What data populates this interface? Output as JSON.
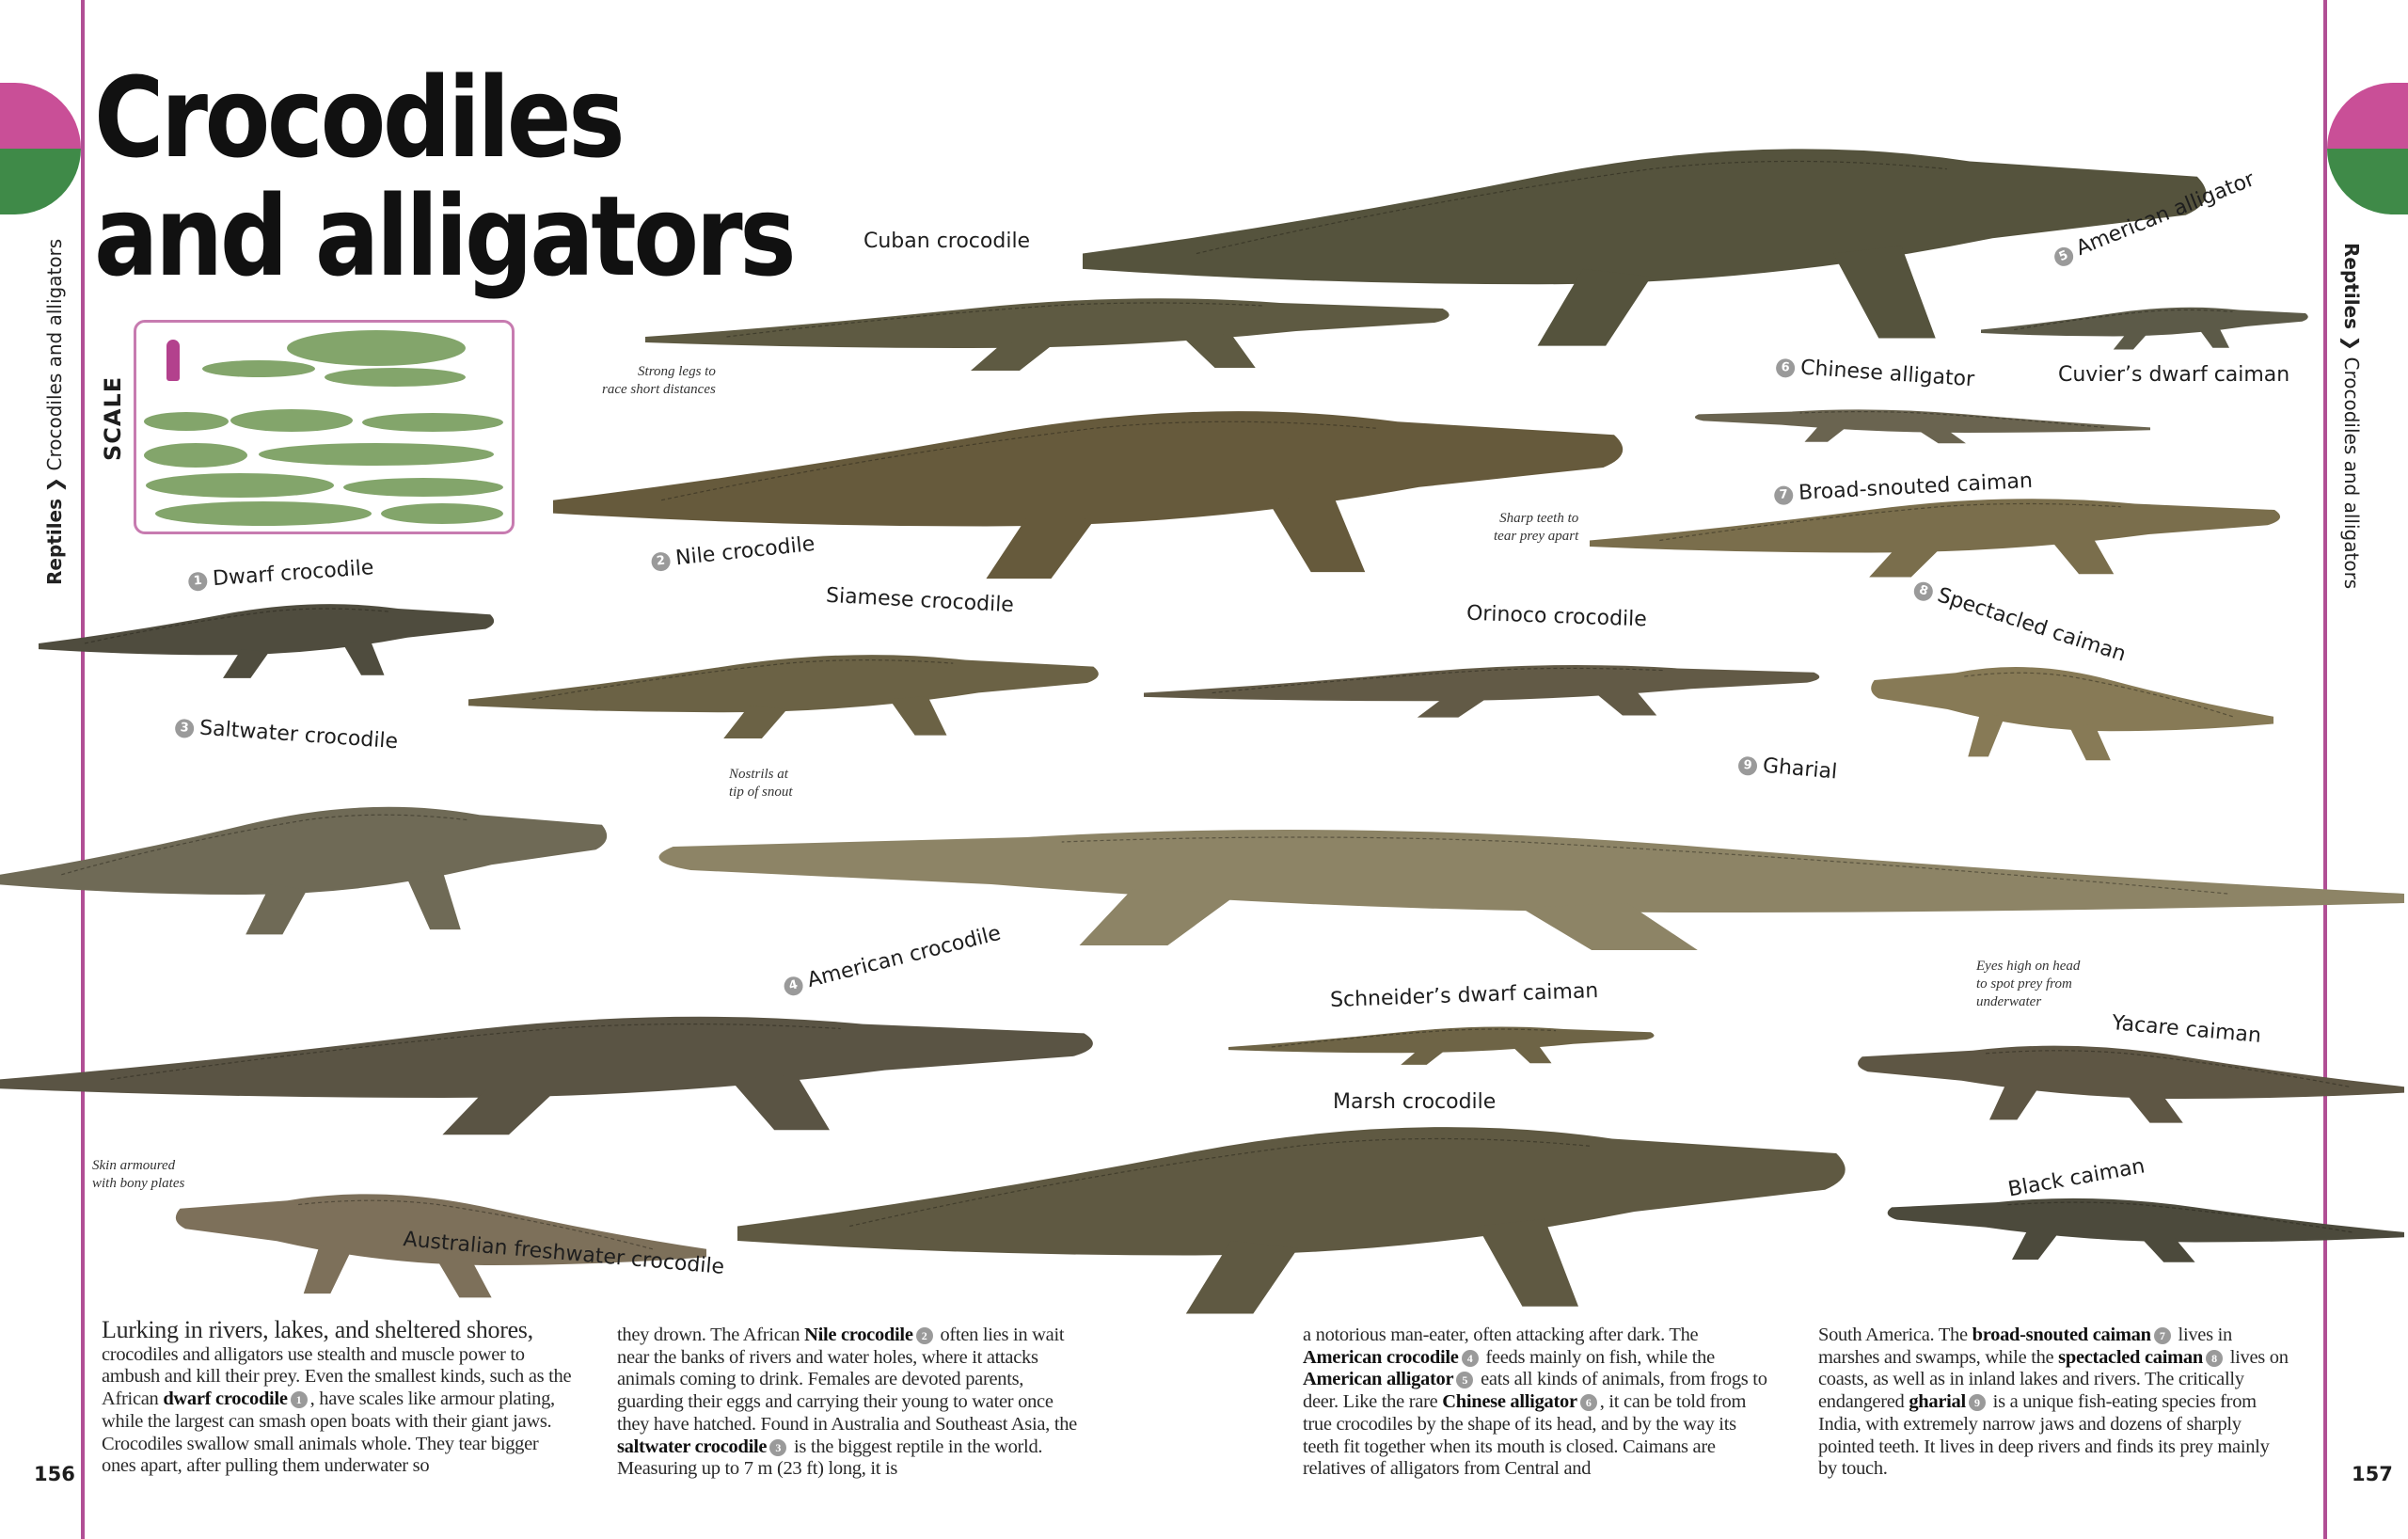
{
  "title": "Crocodiles and alligators",
  "breadcrumb": {
    "section": "Reptiles",
    "separator": "❯",
    "topic": "Crocodiles and alligators"
  },
  "colors": {
    "accent_magenta": "#c94f97",
    "accent_green": "#3f8a48",
    "badge_gray": "#9a9a9a"
  },
  "scale": {
    "label": "SCALE"
  },
  "species": [
    {
      "name": "Cuban crocodile"
    },
    {
      "name": "American alligator",
      "number": "5"
    },
    {
      "name": "Chinese alligator",
      "number": "6"
    },
    {
      "name": "Cuvier’s dwarf caiman"
    },
    {
      "name": "Broad-snouted caiman",
      "number": "7"
    },
    {
      "name": "Nile crocodile",
      "number": "2"
    },
    {
      "name": "Dwarf crocodile",
      "number": "1"
    },
    {
      "name": "Siamese crocodile"
    },
    {
      "name": "Orinoco crocodile"
    },
    {
      "name": "Spectacled caiman",
      "number": "8"
    },
    {
      "name": "Saltwater crocodile",
      "number": "3"
    },
    {
      "name": "Gharial",
      "number": "9"
    },
    {
      "name": "American crocodile",
      "number": "4"
    },
    {
      "name": "Schneider’s dwarf caiman"
    },
    {
      "name": "Yacare caiman"
    },
    {
      "name": "Marsh crocodile"
    },
    {
      "name": "Black caiman"
    },
    {
      "name": "Australian freshwater crocodile"
    }
  ],
  "annotations": {
    "legs": "Strong legs to\nrace short distances",
    "teeth": "Sharp teeth to\ntear prey apart",
    "nostrils": "Nostrils at\ntip of snout",
    "eyes": "Eyes high on head\nto spot prey from\nunderwater",
    "skin": "Skin armoured\nwith bony plates"
  },
  "body": [
    [
      {
        "t": "Lurking in rivers, lakes, and sheltered shores,",
        "lead": true
      },
      {
        "t": " crocodiles and alligators use stealth and muscle power to ambush and kill their prey. Even the smallest kinds, such as the African "
      },
      {
        "t": "dwarf crocodile",
        "b": true
      },
      {
        "n": "1"
      },
      {
        "t": ", have scales like armour plating, while the largest can smash open boats with their giant jaws. Crocodiles swallow small animals whole. They tear bigger ones apart, after pulling them underwater so"
      }
    ],
    [
      {
        "t": "they drown. The African "
      },
      {
        "t": "Nile crocodile",
        "b": true
      },
      {
        "n": "2"
      },
      {
        "t": " often lies in wait near the banks of rivers and water holes, where it attacks animals coming to drink. Females are devoted parents, guarding their eggs and carrying their young to water once they have hatched. Found in Australia and Southeast Asia, the "
      },
      {
        "t": "saltwater crocodile",
        "b": true
      },
      {
        "n": "3"
      },
      {
        "t": " is the biggest reptile in the world. Measuring up to 7 m (23 ft) long, it is"
      }
    ],
    [
      {
        "t": "a notorious man-eater, often attacking after dark. The "
      },
      {
        "t": "American crocodile",
        "b": true
      },
      {
        "n": "4"
      },
      {
        "t": " feeds mainly on fish, while the "
      },
      {
        "t": "American alligator",
        "b": true
      },
      {
        "n": "5"
      },
      {
        "t": " eats all kinds of animals, from frogs to deer. Like the rare "
      },
      {
        "t": "Chinese alligator",
        "b": true
      },
      {
        "n": "6"
      },
      {
        "t": ", it can be told from true crocodiles by the shape of its head, and by the way its teeth fit together when its mouth is closed. Caimans are relatives of alligators from Central and"
      }
    ],
    [
      {
        "t": "South America. The "
      },
      {
        "t": "broad-snouted caiman",
        "b": true
      },
      {
        "n": "7"
      },
      {
        "t": " lives in marshes and swamps, while the "
      },
      {
        "t": "spectacled caiman",
        "b": true
      },
      {
        "n": "8"
      },
      {
        "t": " lives on coasts, as well as in inland lakes and rivers. The critically endangered "
      },
      {
        "t": "gharial",
        "b": true
      },
      {
        "n": "9"
      },
      {
        "t": " is a unique fish-eating species from India, with extremely narrow jaws and dozens of sharply pointed teeth. It lives in deep rivers and finds its prey mainly by touch."
      }
    ]
  ],
  "page_numbers": {
    "left": "156",
    "right": "157"
  }
}
